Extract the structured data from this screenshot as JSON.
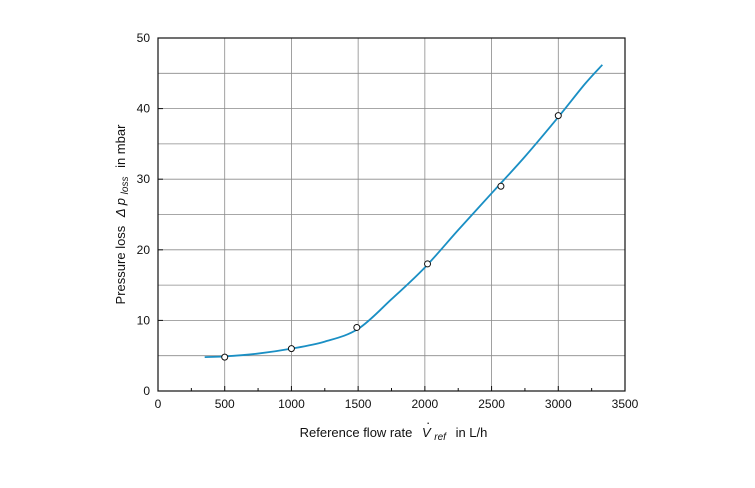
{
  "chart_data": {
    "type": "line",
    "xlabel": {
      "prefix": "Reference flow rate",
      "symbol": "V",
      "subscript": "ref",
      "suffix": "in L/h"
    },
    "ylabel": {
      "prefix": "Pressure loss",
      "symbol": "Δ p",
      "subscript": "loss",
      "suffix": "in mbar"
    },
    "xlim": [
      0,
      3500
    ],
    "ylim": [
      0,
      50
    ],
    "xticks": [
      0,
      500,
      1000,
      1500,
      2000,
      2500,
      3000,
      3500
    ],
    "yticks": [
      0,
      10,
      20,
      30,
      40,
      50
    ],
    "grid": true,
    "curve_color": "#1a8fc4",
    "marker_fill": "#ffffff",
    "series": [
      {
        "type": "line",
        "x": [
          350,
          500,
          750,
          1000,
          1250,
          1500,
          1750,
          2000,
          2250,
          2500,
          2750,
          3000,
          3200,
          3330
        ],
        "y": [
          4.8,
          4.9,
          5.3,
          6.0,
          7.0,
          8.8,
          13.0,
          17.5,
          22.8,
          28.0,
          33.2,
          38.8,
          43.5,
          46.2
        ]
      },
      {
        "type": "scatter",
        "x": [
          500,
          1000,
          1490,
          2020,
          2570,
          3000
        ],
        "y": [
          4.8,
          6.0,
          9.0,
          18.0,
          29.0,
          39.0
        ]
      }
    ]
  }
}
